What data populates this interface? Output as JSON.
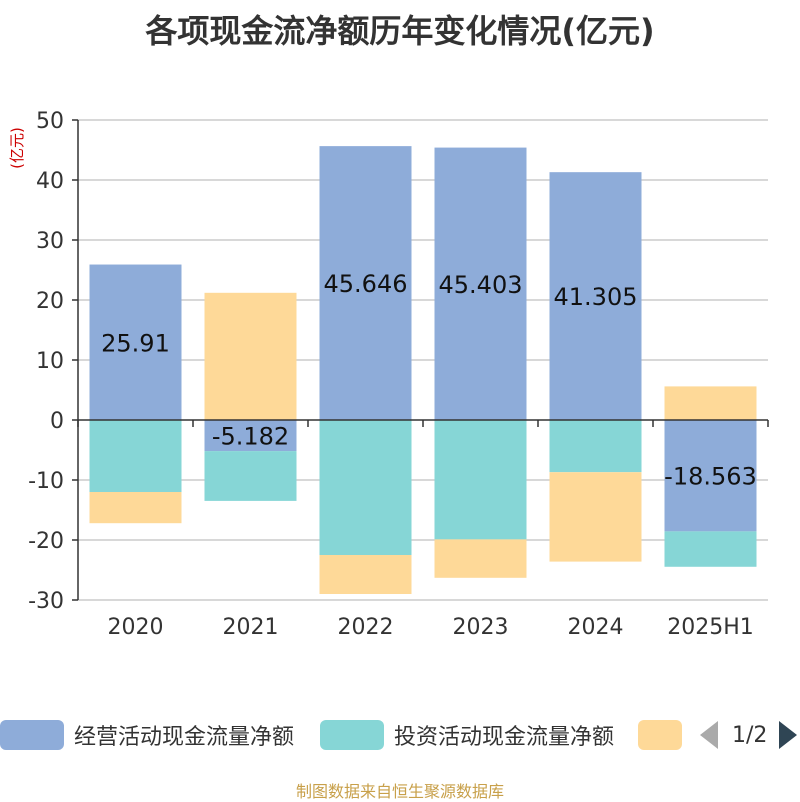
{
  "title": "各项现金流净额历年变化情况(亿元)",
  "source_note": "制图数据来自恒生聚源数据库",
  "colors": {
    "operating": "#8eacd9",
    "investing": "#86d6d6",
    "financing": "#fed998",
    "axis": "#333333",
    "grid": "#cccccc",
    "unit_label": "#cc0000"
  },
  "legend": {
    "items": [
      {
        "label": "经营活动现金流量净额",
        "color": "#8eacd9"
      },
      {
        "label": "投资活动现金流量净额",
        "color": "#86d6d6"
      },
      {
        "label": "",
        "color": "#fed998"
      }
    ],
    "page": "1/2"
  },
  "chart_data": {
    "type": "bar",
    "stacked": true,
    "title": "各项现金流净额历年变化情况(亿元)",
    "ylabel": "(亿元)",
    "xlabel": "",
    "ylim": [
      -30,
      50
    ],
    "yticks": [
      50,
      40,
      30,
      20,
      10,
      0,
      -10,
      -20,
      -30
    ],
    "grid": true,
    "legend_position": "bottom",
    "categories": [
      "2020",
      "2021",
      "2022",
      "2023",
      "2024",
      "2025H1"
    ],
    "series": [
      {
        "name": "经营活动现金流量净额",
        "values": [
          25.91,
          -5.182,
          45.646,
          45.403,
          41.305,
          -18.563
        ],
        "show_labels": true
      },
      {
        "name": "投资活动现金流量净额",
        "values": [
          -12.0,
          -8.3,
          -22.5,
          -19.9,
          -8.7,
          -5.9
        ]
      },
      {
        "values": [
          -5.2,
          21.2,
          -6.5,
          -6.4,
          -14.9,
          5.6
        ]
      }
    ],
    "data_labels": [
      "25.91",
      "-5.182",
      "45.646",
      "45.403",
      "41.305",
      "-18.563"
    ]
  }
}
